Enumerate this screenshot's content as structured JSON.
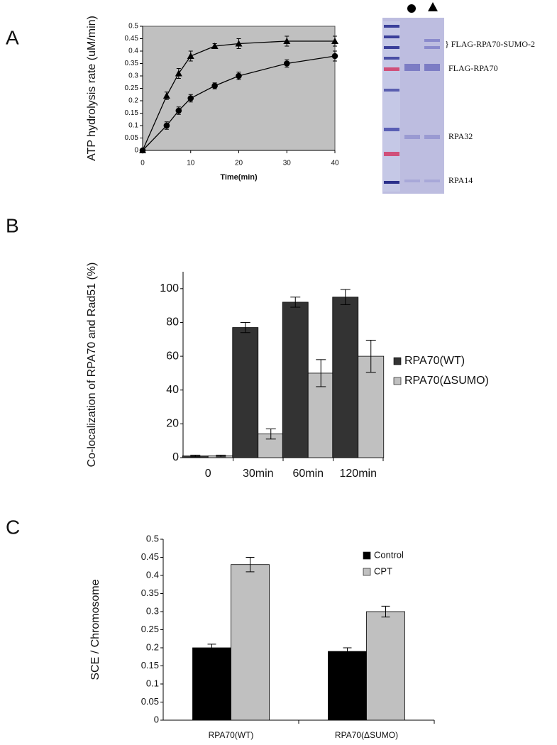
{
  "panels": [
    "A",
    "B",
    "C"
  ],
  "gel": {
    "labels": [
      "} FLAG-RPA70-SUMO-2",
      "FLAG-RPA70",
      "RPA32",
      "RPA14"
    ]
  },
  "chart_data": [
    {
      "type": "line",
      "y_label": "ATP hydrolysis rate (uM/min)",
      "x_label": "Time(min)",
      "x": [
        0,
        5,
        7.5,
        10,
        15,
        20,
        30,
        40
      ],
      "series": [
        {
          "marker": "circle",
          "color": "#000000",
          "values": [
            0,
            0.1,
            0.16,
            0.21,
            0.26,
            0.3,
            0.35,
            0.38
          ],
          "errors": [
            0,
            0.015,
            0.015,
            0.015,
            0.012,
            0.015,
            0.015,
            0.02
          ]
        },
        {
          "marker": "triangle",
          "color": "#000000",
          "values": [
            0,
            0.22,
            0.31,
            0.38,
            0.42,
            0.43,
            0.44,
            0.44
          ],
          "errors": [
            0,
            0.015,
            0.02,
            0.02,
            0.01,
            0.02,
            0.02,
            0.02
          ]
        }
      ],
      "xlim": [
        0,
        40
      ],
      "xticks": [
        0,
        10,
        20,
        30,
        40
      ],
      "ylim": [
        0,
        0.5
      ],
      "yticks": [
        0,
        0.05,
        0.1,
        0.15,
        0.2,
        0.25,
        0.3,
        0.35,
        0.4,
        0.45,
        0.5
      ],
      "background": "#c0c0c0"
    },
    {
      "type": "bar",
      "y_label": "Co-localization of RPA70 and Rad51 (%)",
      "categories": [
        "0",
        "30min",
        "60min",
        "120min"
      ],
      "series": [
        {
          "name": "RPA70(WT)",
          "color": "#333333",
          "values": [
            1,
            77,
            92,
            95
          ],
          "errors": [
            0.5,
            3,
            3,
            4.5
          ]
        },
        {
          "name": "RPA70(ΔSUMO)",
          "color": "#c0c0c0",
          "values": [
            1,
            14,
            50,
            60
          ],
          "errors": [
            0.5,
            3,
            8,
            9.5
          ]
        }
      ],
      "ylim": [
        0,
        110
      ],
      "yticks": [
        0,
        20,
        40,
        60,
        80,
        100
      ],
      "legend": "right"
    },
    {
      "type": "bar",
      "y_label": "SCE / Chromosome",
      "categories": [
        "RPA70(WT)",
        "RPA70(ΔSUMO)"
      ],
      "series": [
        {
          "name": "Control",
          "color": "#000000",
          "values": [
            0.2,
            0.19
          ],
          "errors": [
            0.01,
            0.01
          ]
        },
        {
          "name": "CPT",
          "color": "#c0c0c0",
          "values": [
            0.43,
            0.3
          ],
          "errors": [
            0.02,
            0.015
          ]
        }
      ],
      "ylim": [
        0,
        0.5
      ],
      "yticks": [
        0,
        0.05,
        0.1,
        0.15,
        0.2,
        0.25,
        0.3,
        0.35,
        0.4,
        0.45,
        0.5
      ],
      "legend": "top-right"
    }
  ]
}
